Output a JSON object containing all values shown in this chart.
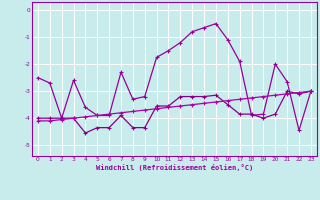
{
  "xlabel": "Windchill (Refroidissement éolien,°C)",
  "xlim": [
    -0.5,
    23.5
  ],
  "ylim": [
    -5.4,
    0.3
  ],
  "yticks": [
    0,
    -1,
    -2,
    -3,
    -4,
    -5
  ],
  "xticks": [
    0,
    1,
    2,
    3,
    4,
    5,
    6,
    7,
    8,
    9,
    10,
    11,
    12,
    13,
    14,
    15,
    16,
    17,
    18,
    19,
    20,
    21,
    22,
    23
  ],
  "bg_color": "#c8ecec",
  "grid_color": "#aadddd",
  "line_color1": "#990099",
  "line_color2": "#880088",
  "line_color3": "#aa00aa",
  "series1_x": [
    0,
    1,
    2,
    3,
    4,
    5,
    6,
    7,
    8,
    9,
    10,
    11,
    12,
    13,
    14,
    15,
    16,
    17,
    18,
    19,
    20,
    21,
    22,
    23
  ],
  "series1_y": [
    -2.5,
    -2.7,
    -4.0,
    -2.6,
    -3.6,
    -3.9,
    -3.9,
    -2.3,
    -3.3,
    -3.2,
    -1.75,
    -1.5,
    -1.2,
    -0.8,
    -0.65,
    -0.5,
    -1.1,
    -1.9,
    -3.9,
    -3.85,
    -2.0,
    -2.65,
    -4.45,
    -3.0
  ],
  "series2_x": [
    0,
    1,
    2,
    3,
    4,
    5,
    6,
    7,
    8,
    9,
    10,
    11,
    12,
    13,
    14,
    15,
    16,
    17,
    18,
    19,
    20,
    21,
    22,
    23
  ],
  "series2_y": [
    -4.0,
    -4.0,
    -4.0,
    -4.0,
    -4.55,
    -4.35,
    -4.35,
    -3.9,
    -4.35,
    -4.35,
    -3.55,
    -3.55,
    -3.2,
    -3.2,
    -3.2,
    -3.15,
    -3.5,
    -3.85,
    -3.85,
    -4.0,
    -3.85,
    -3.0,
    -3.1,
    -3.0
  ],
  "series3_x": [
    0,
    1,
    2,
    3,
    4,
    5,
    6,
    7,
    8,
    9,
    10,
    11,
    12,
    13,
    14,
    15,
    16,
    17,
    18,
    19,
    20,
    21,
    22,
    23
  ],
  "series3_y": [
    -4.1,
    -4.1,
    -4.05,
    -4.0,
    -3.95,
    -3.9,
    -3.85,
    -3.8,
    -3.75,
    -3.7,
    -3.65,
    -3.6,
    -3.55,
    -3.5,
    -3.45,
    -3.4,
    -3.35,
    -3.3,
    -3.25,
    -3.2,
    -3.15,
    -3.1,
    -3.05,
    -3.0
  ],
  "marker": "+",
  "markersize": 3,
  "linewidth": 0.9
}
